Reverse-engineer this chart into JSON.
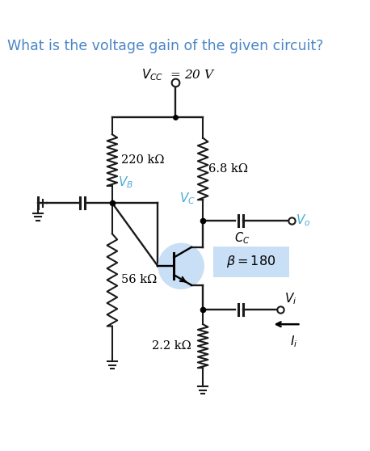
{
  "title": "What is the voltage gain of the given circuit?",
  "title_color": "#4a86c8",
  "title_fontsize": 12.5,
  "bg_color": "#ffffff",
  "r1_label": "220 kΩ",
  "r2_label": "56 kΩ",
  "rc_label": "6.8 kΩ",
  "re_label": "2.2 kΩ",
  "beta_label": "β = 180",
  "transistor_circle_color": "#c8dff5",
  "beta_box_color": "#c8dff5",
  "line_color": "#1a1a1a",
  "blue_label_color": "#4aa8d8"
}
